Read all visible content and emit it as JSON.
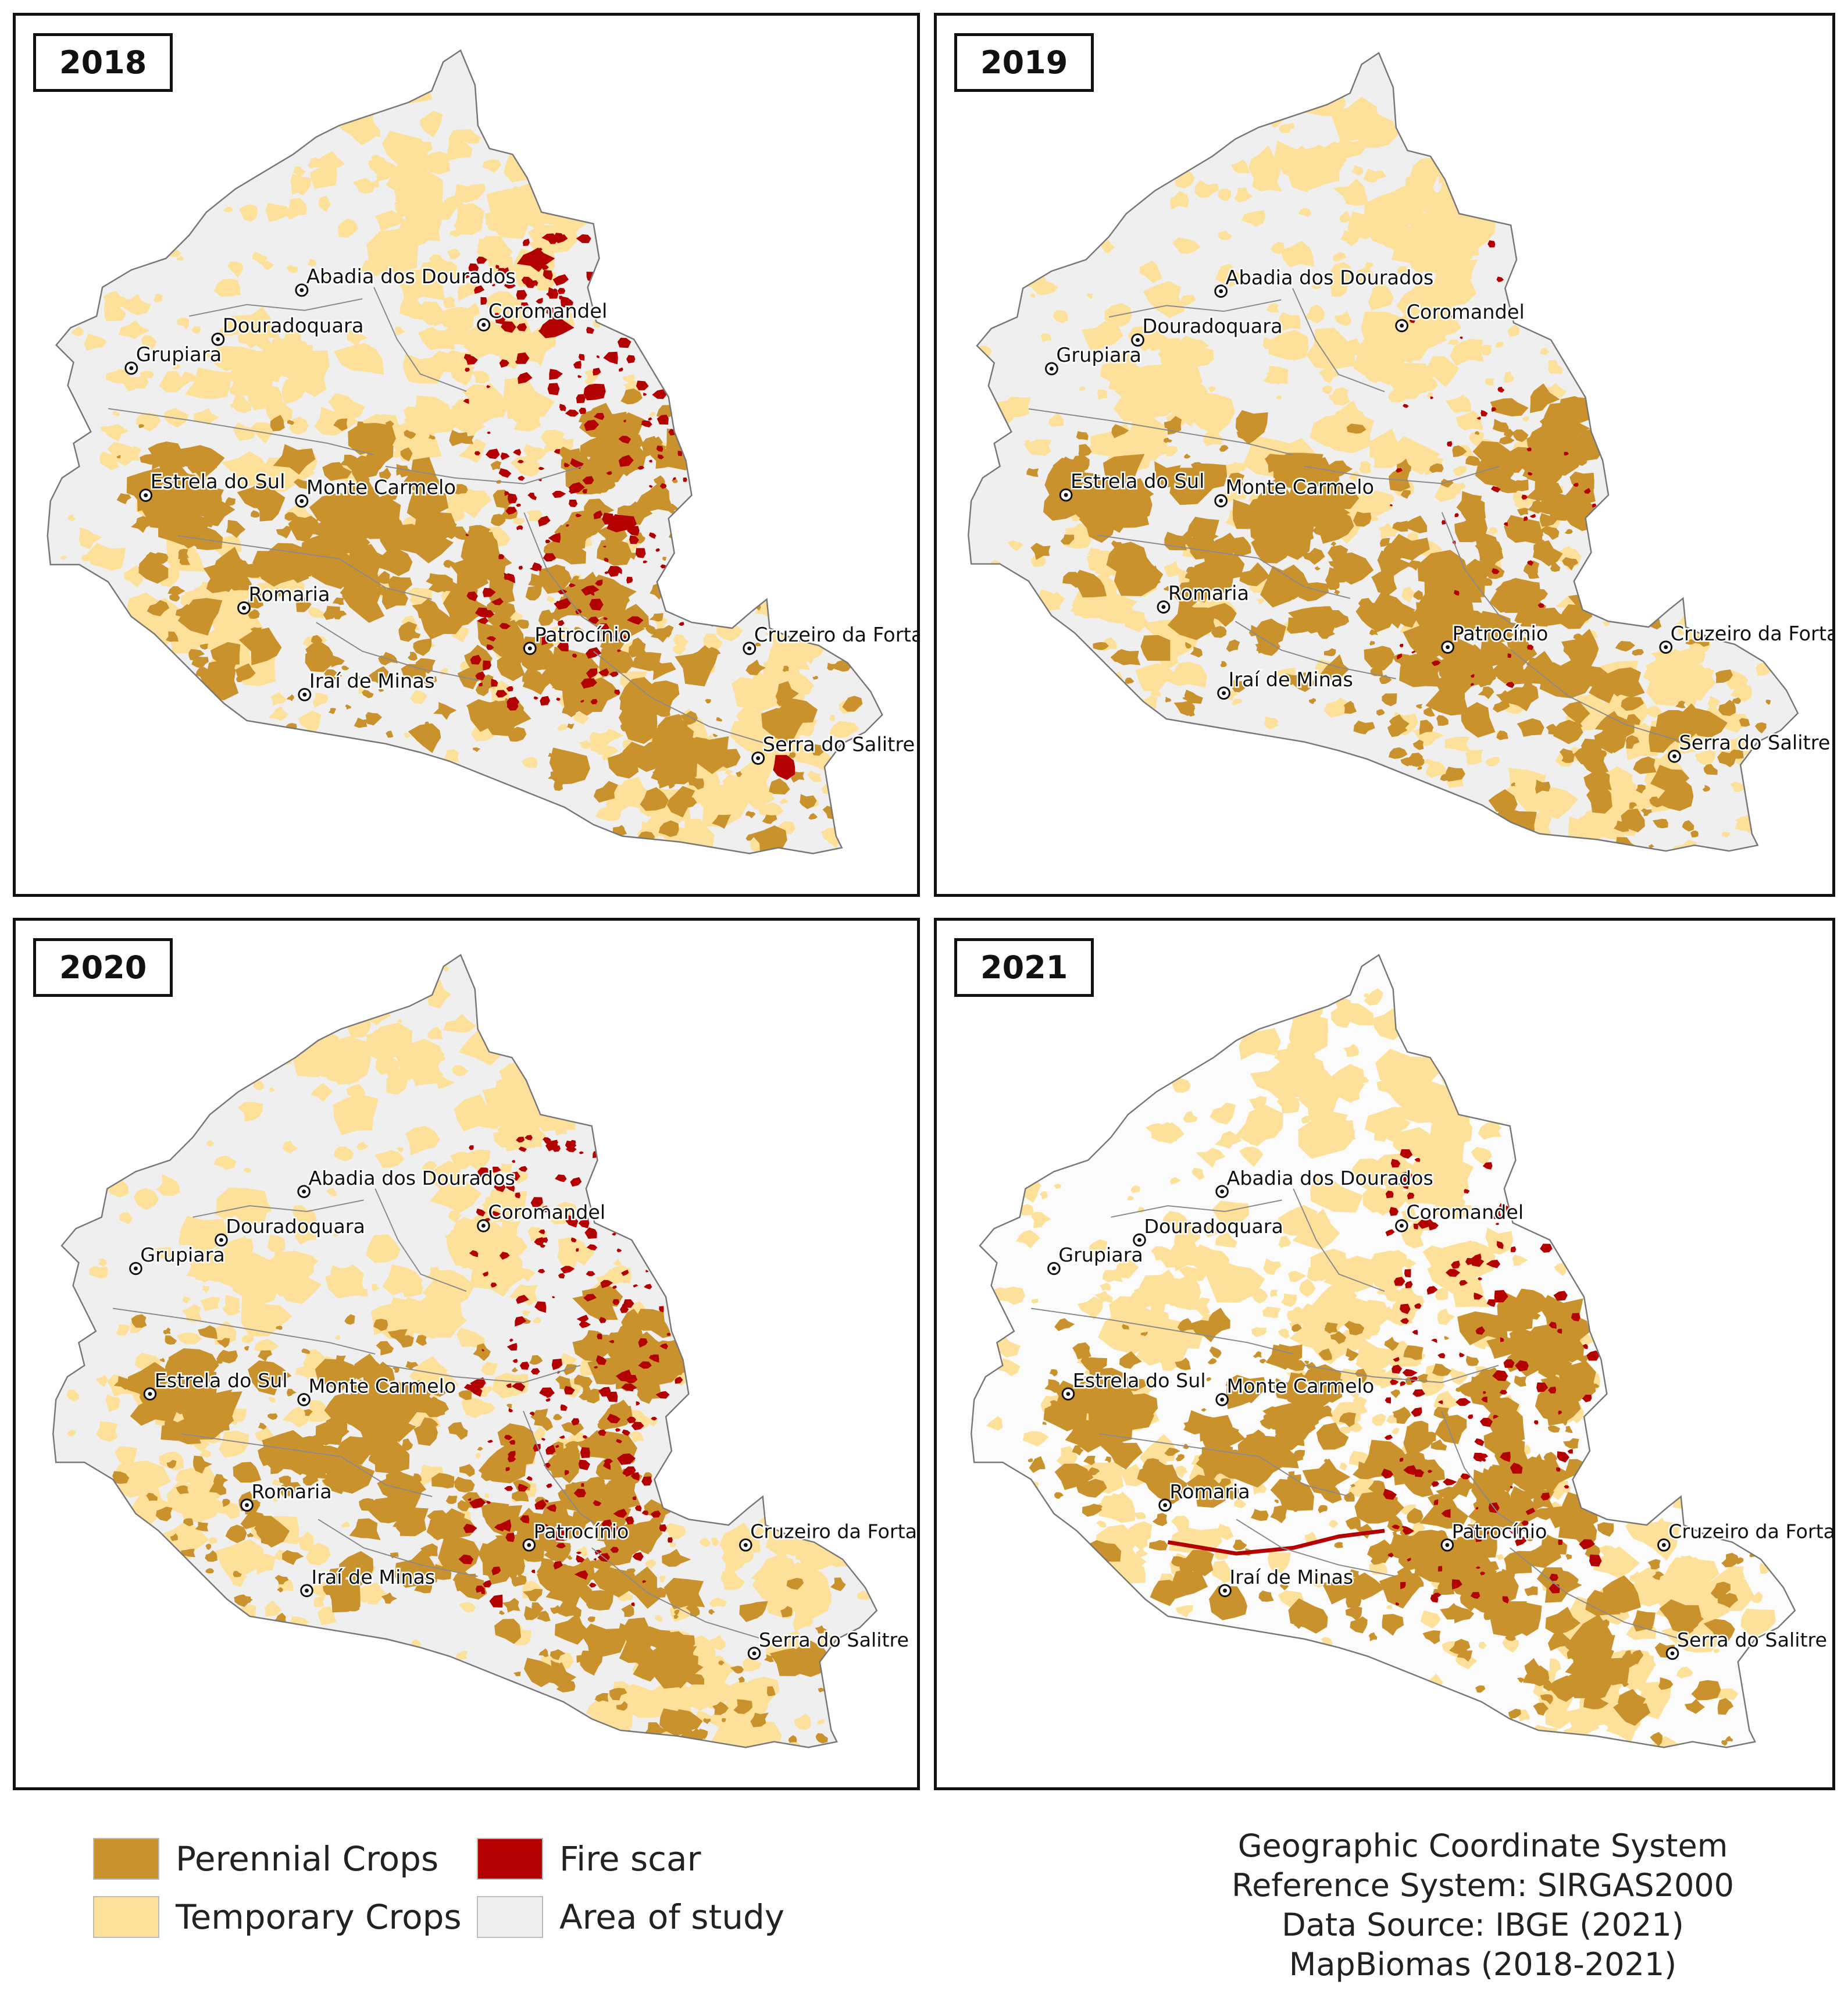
{
  "colors": {
    "perennial": "#c9922d",
    "temporary": "#fde19a",
    "fire": "#b30000",
    "area": "#efefef",
    "border": "#8a8a8a"
  },
  "panels": [
    {
      "year": "2018",
      "fire_extent": "high"
    },
    {
      "year": "2019",
      "fire_extent": "low"
    },
    {
      "year": "2020",
      "fire_extent": "high"
    },
    {
      "year": "2021",
      "fire_extent": "medium"
    }
  ],
  "cities": [
    "Abadia dos Dourados",
    "Coromandel",
    "Douradoquara",
    "Grupiara",
    "Estrela do Sul",
    "Monte Carmelo",
    "Romaria",
    "Patrocínio",
    "Cruzeiro da Fortaleza",
    "Iraí de Minas",
    "Serra do Salitre"
  ],
  "legend": [
    {
      "label": "Perennial Crops",
      "color_key": "perennial"
    },
    {
      "label": "Fire scar",
      "color_key": "fire"
    },
    {
      "label": "Temporary Crops",
      "color_key": "temporary"
    },
    {
      "label": "Area of study",
      "color_key": "area"
    }
  ],
  "credits": [
    "Geographic Coordinate System",
    "Reference System: SIRGAS2000",
    "Data Source: IBGE (2021)",
    "MapBiomas (2018-2021)"
  ]
}
